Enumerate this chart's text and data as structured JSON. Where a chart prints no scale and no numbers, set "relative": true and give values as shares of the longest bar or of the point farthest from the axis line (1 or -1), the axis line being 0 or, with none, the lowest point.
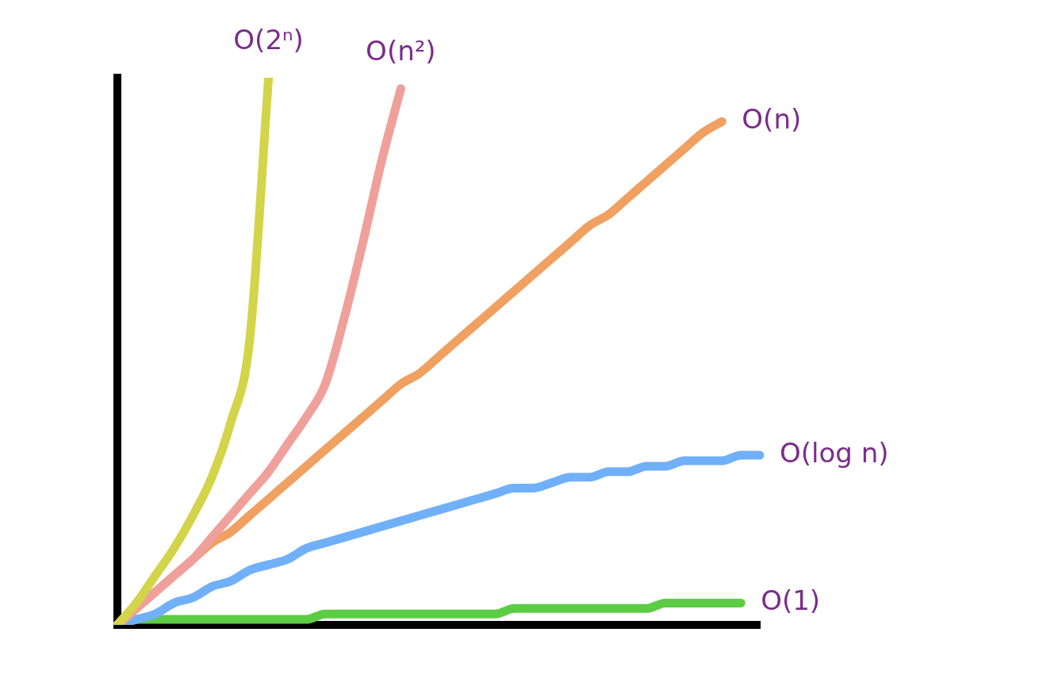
{
  "chart_data": {
    "type": "line",
    "relative": true,
    "grid": false,
    "legend": false,
    "marker": "none",
    "line_style": "solid",
    "categories": [
      null,
      null,
      null,
      null,
      null,
      null,
      null,
      null,
      null,
      null,
      null,
      null,
      null,
      null,
      null,
      null,
      null,
      null,
      null,
      null,
      null,
      null,
      null,
      null,
      null,
      null,
      null,
      null,
      null,
      null,
      null,
      null,
      null,
      null,
      null
    ],
    "series": [
      {
        "name": "O(2ⁿ)",
        "color": "#d4d44a",
        "values": [
          0,
          0.04,
          0.09,
          0.14,
          0.2,
          0.27,
          0.37,
          0.52,
          1.0,
          null,
          null,
          null,
          null,
          null,
          null,
          null,
          null,
          null,
          null,
          null,
          null,
          null,
          null,
          null,
          null,
          null,
          null,
          null,
          null,
          null,
          null,
          null,
          null,
          null,
          null
        ]
      },
      {
        "name": "O(n²)",
        "color": "#f0a09a",
        "values": [
          0,
          0.03,
          0.06,
          0.09,
          0.12,
          0.16,
          0.2,
          0.24,
          0.28,
          0.33,
          0.38,
          0.44,
          0.56,
          0.7,
          0.85,
          0.98,
          null,
          null,
          null,
          null,
          null,
          null,
          null,
          null,
          null,
          null,
          null,
          null,
          null,
          null,
          null,
          null,
          null,
          null,
          null
        ]
      },
      {
        "name": "O(n)",
        "color": "#f0a060",
        "values": [
          0,
          0.03,
          0.06,
          0.09,
          0.12,
          0.15,
          0.17,
          0.2,
          0.23,
          0.26,
          0.29,
          0.32,
          0.35,
          0.38,
          0.41,
          0.44,
          0.46,
          0.49,
          0.52,
          0.55,
          0.58,
          0.61,
          0.64,
          0.67,
          0.7,
          0.73,
          0.75,
          0.78,
          0.81,
          0.84,
          0.87,
          0.9,
          0.92,
          null,
          null
        ]
      },
      {
        "name": "O(log n)",
        "color": "#70b0f8",
        "values": [
          0,
          0.01,
          0.02,
          0.04,
          0.05,
          0.07,
          0.08,
          0.1,
          0.11,
          0.12,
          0.14,
          0.15,
          0.16,
          0.17,
          0.18,
          0.19,
          0.2,
          0.21,
          0.22,
          0.23,
          0.24,
          0.25,
          0.25,
          0.26,
          0.27,
          0.27,
          0.28,
          0.28,
          0.29,
          0.29,
          0.3,
          0.3,
          0.3,
          0.31,
          0.31
        ]
      },
      {
        "name": "O(1)",
        "color": "#5ccc44",
        "values": [
          0,
          0.01,
          0.01,
          0.01,
          0.01,
          0.01,
          0.01,
          0.01,
          0.01,
          0.01,
          0.01,
          0.02,
          0.02,
          0.02,
          0.02,
          0.02,
          0.02,
          0.02,
          0.02,
          0.02,
          0.02,
          0.03,
          0.03,
          0.03,
          0.03,
          0.03,
          0.03,
          0.03,
          0.03,
          0.04,
          0.04,
          0.04,
          0.04,
          0.04,
          null
        ]
      }
    ]
  }
}
